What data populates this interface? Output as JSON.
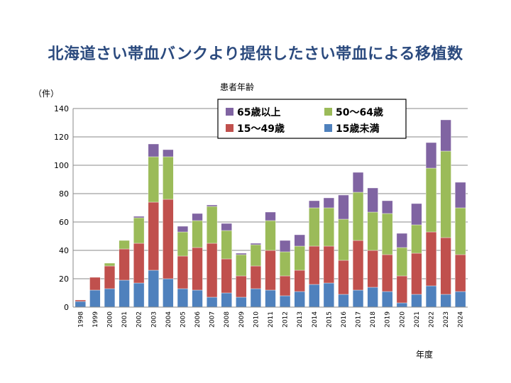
{
  "slide": {
    "title": "北海道さい帯血バンクより提供したさい帯血による移植数"
  },
  "chart_data": {
    "type": "bar",
    "stacked": true,
    "ylabel": "（件）",
    "xlabel": "年度",
    "legend_title": "患者年齢",
    "ylim": [
      0,
      140
    ],
    "yticks": [
      0,
      20,
      40,
      60,
      80,
      100,
      120,
      140
    ],
    "grid": true,
    "categories": [
      "1998",
      "1999",
      "2000",
      "2001",
      "2002",
      "2003",
      "2004",
      "2005",
      "2006",
      "2007",
      "2008",
      "2009",
      "2010",
      "2011",
      "2012",
      "2013",
      "2014",
      "2015",
      "2016",
      "2017",
      "2018",
      "2019",
      "2020",
      "2021",
      "2022",
      "2023",
      "2024"
    ],
    "series": [
      {
        "name": "15歳未満",
        "color": "#4f81bd",
        "values": [
          4,
          12,
          13,
          19,
          17,
          26,
          20,
          13,
          12,
          7,
          10,
          7,
          13,
          12,
          8,
          11,
          16,
          17,
          9,
          12,
          14,
          11,
          3,
          9,
          15,
          9,
          11
        ]
      },
      {
        "name": "15～49歳",
        "color": "#c0504d",
        "values": [
          1,
          9,
          16,
          22,
          28,
          48,
          56,
          23,
          30,
          38,
          24,
          15,
          16,
          28,
          14,
          15,
          27,
          26,
          24,
          35,
          26,
          26,
          19,
          29,
          38,
          40,
          26
        ]
      },
      {
        "name": "50～64歳",
        "color": "#9bbb59",
        "values": [
          0,
          0,
          2,
          6,
          18,
          32,
          30,
          17,
          19,
          26,
          20,
          15,
          15,
          21,
          17,
          17,
          27,
          27,
          29,
          34,
          27,
          29,
          20,
          20,
          45,
          61,
          33
        ]
      },
      {
        "name": "65歳以上",
        "color": "#8064a2",
        "values": [
          0,
          0,
          0,
          0,
          1,
          9,
          5,
          4,
          5,
          1,
          5,
          1,
          1,
          6,
          8,
          8,
          5,
          7,
          17,
          14,
          17,
          9,
          10,
          15,
          18,
          22,
          18
        ]
      }
    ],
    "legend": {
      "placement": "top-right",
      "entries": [
        "65歳以上",
        "50～64歳",
        "15～49歳",
        "15歳未満"
      ]
    }
  }
}
